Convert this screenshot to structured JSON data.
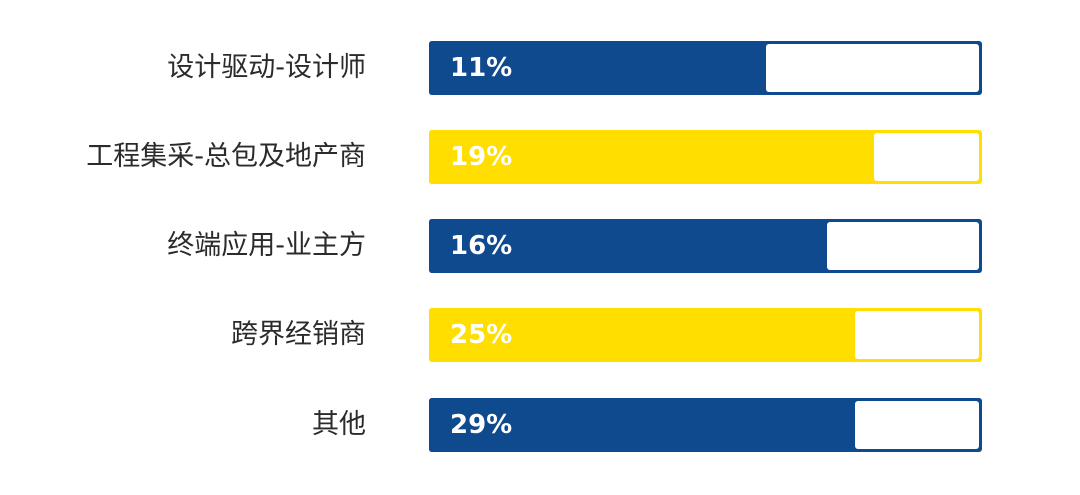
{
  "chart_data": {
    "type": "bar",
    "orientation": "horizontal",
    "categories": [
      "设计驱动-设计师",
      "工程集采-总包及地产商",
      "终端应用-业主方",
      "跨界经销商",
      "其他"
    ],
    "values": [
      11,
      19,
      16,
      25,
      29
    ],
    "value_labels": [
      "11%",
      "19%",
      "16%",
      "25%",
      "29%"
    ],
    "fill_fractions": [
      0.61,
      0.805,
      0.72,
      0.77,
      0.77
    ],
    "colors": [
      "#0f4a8f",
      "#ffde00",
      "#0f4a8f",
      "#ffde00",
      "#0f4a8f"
    ],
    "unit": "%"
  }
}
